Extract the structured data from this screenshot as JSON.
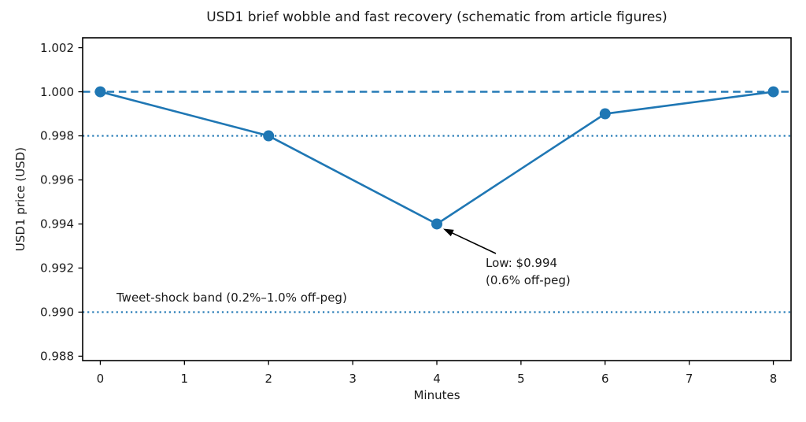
{
  "chart_data": {
    "type": "line",
    "title": "USD1 brief wobble and fast recovery (schematic from article figures)",
    "xlabel": "Minutes",
    "ylabel": "USD1 price (USD)",
    "series": [
      {
        "name": "USD1 price",
        "x": [
          0,
          2,
          4,
          6,
          8
        ],
        "y": [
          1.0,
          0.998,
          0.994,
          0.999,
          1.0
        ]
      }
    ],
    "xlim": [
      -0.21,
      8.21
    ],
    "ylim": [
      0.9878,
      1.00245
    ],
    "xticks": [
      "0",
      "1",
      "2",
      "3",
      "4",
      "5",
      "6",
      "7",
      "8"
    ],
    "yticks": [
      "0.988",
      "0.990",
      "0.992",
      "0.994",
      "0.996",
      "0.998",
      "1.000",
      "1.002"
    ],
    "grid": false,
    "legend": false,
    "reference_lines": [
      {
        "y": 1.0,
        "style": "dashed"
      },
      {
        "y": 0.998,
        "style": "dotted"
      },
      {
        "y": 0.99,
        "style": "dotted"
      }
    ],
    "band_label": "Tweet-shock band (0.2%–1.0% off-peg)",
    "annotation": {
      "line1": "Low: $0.994",
      "line2": "(0.6% off-peg)",
      "target_x": 4,
      "target_y": 0.994
    },
    "colors": {
      "line": "#1f77b4",
      "reference": "#1f77b4",
      "arrow": "#000000",
      "axis": "#000000",
      "text": "#1a1a1a"
    }
  }
}
